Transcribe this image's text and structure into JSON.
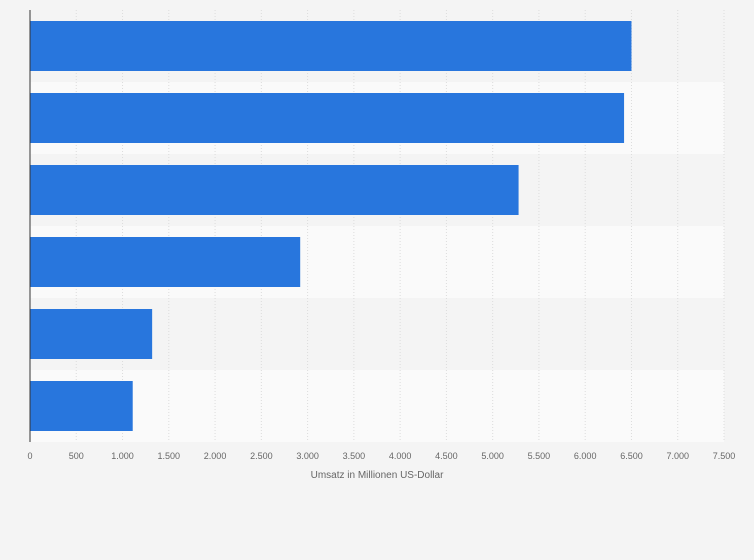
{
  "chart_data": {
    "type": "bar",
    "orientation": "horizontal",
    "categories": [
      "",
      "",
      "",
      "",
      "",
      ""
    ],
    "values": [
      6500,
      6420,
      5280,
      2920,
      1320,
      1110
    ],
    "xlabel": "Umsatz in Millionen US-Dollar",
    "ylabel": "",
    "xlim": [
      0,
      7500
    ],
    "xticks": [
      0,
      500,
      1000,
      1500,
      2000,
      2500,
      3000,
      3500,
      4000,
      4500,
      5000,
      5500,
      6000,
      6500,
      7000,
      7500
    ],
    "xtick_labels": [
      "0",
      "500",
      "1.000",
      "1.500",
      "2.000",
      "2.500",
      "3.000",
      "3.500",
      "4.000",
      "4.500",
      "5.000",
      "5.500",
      "6.000",
      "6.500",
      "7.000",
      "7.500"
    ],
    "grid": true,
    "bar_color": "#2876dd",
    "band_colors": [
      "#f4f4f4",
      "#fafafa"
    ]
  }
}
